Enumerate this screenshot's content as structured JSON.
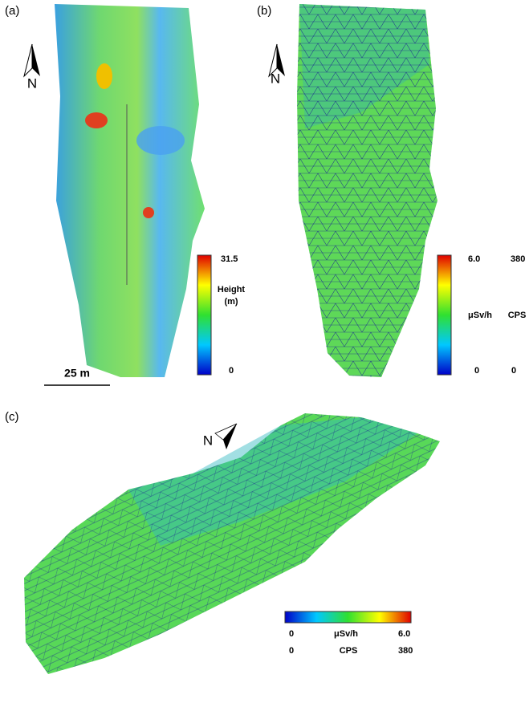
{
  "panels": [
    {
      "label": "(a)",
      "north": "N",
      "scale_bar": "25 m",
      "colorbar": {
        "max": "31.5",
        "title": "Height",
        "unit": "(m)",
        "min": "0"
      }
    },
    {
      "label": "(b)",
      "north": "N",
      "colorbar": {
        "max_dose": "6.0",
        "max_cps": "380",
        "dose_unit": "μSv/h",
        "cps_unit": "CPS",
        "min_dose": "0",
        "min_cps": "0"
      }
    },
    {
      "label": "(c)",
      "north": "N",
      "colorbar": {
        "min_dose": "0",
        "dose_unit": "μSv/h",
        "max_dose": "6.0",
        "min_cps": "0",
        "cps_unit": "CPS",
        "max_cps": "380"
      }
    }
  ]
}
